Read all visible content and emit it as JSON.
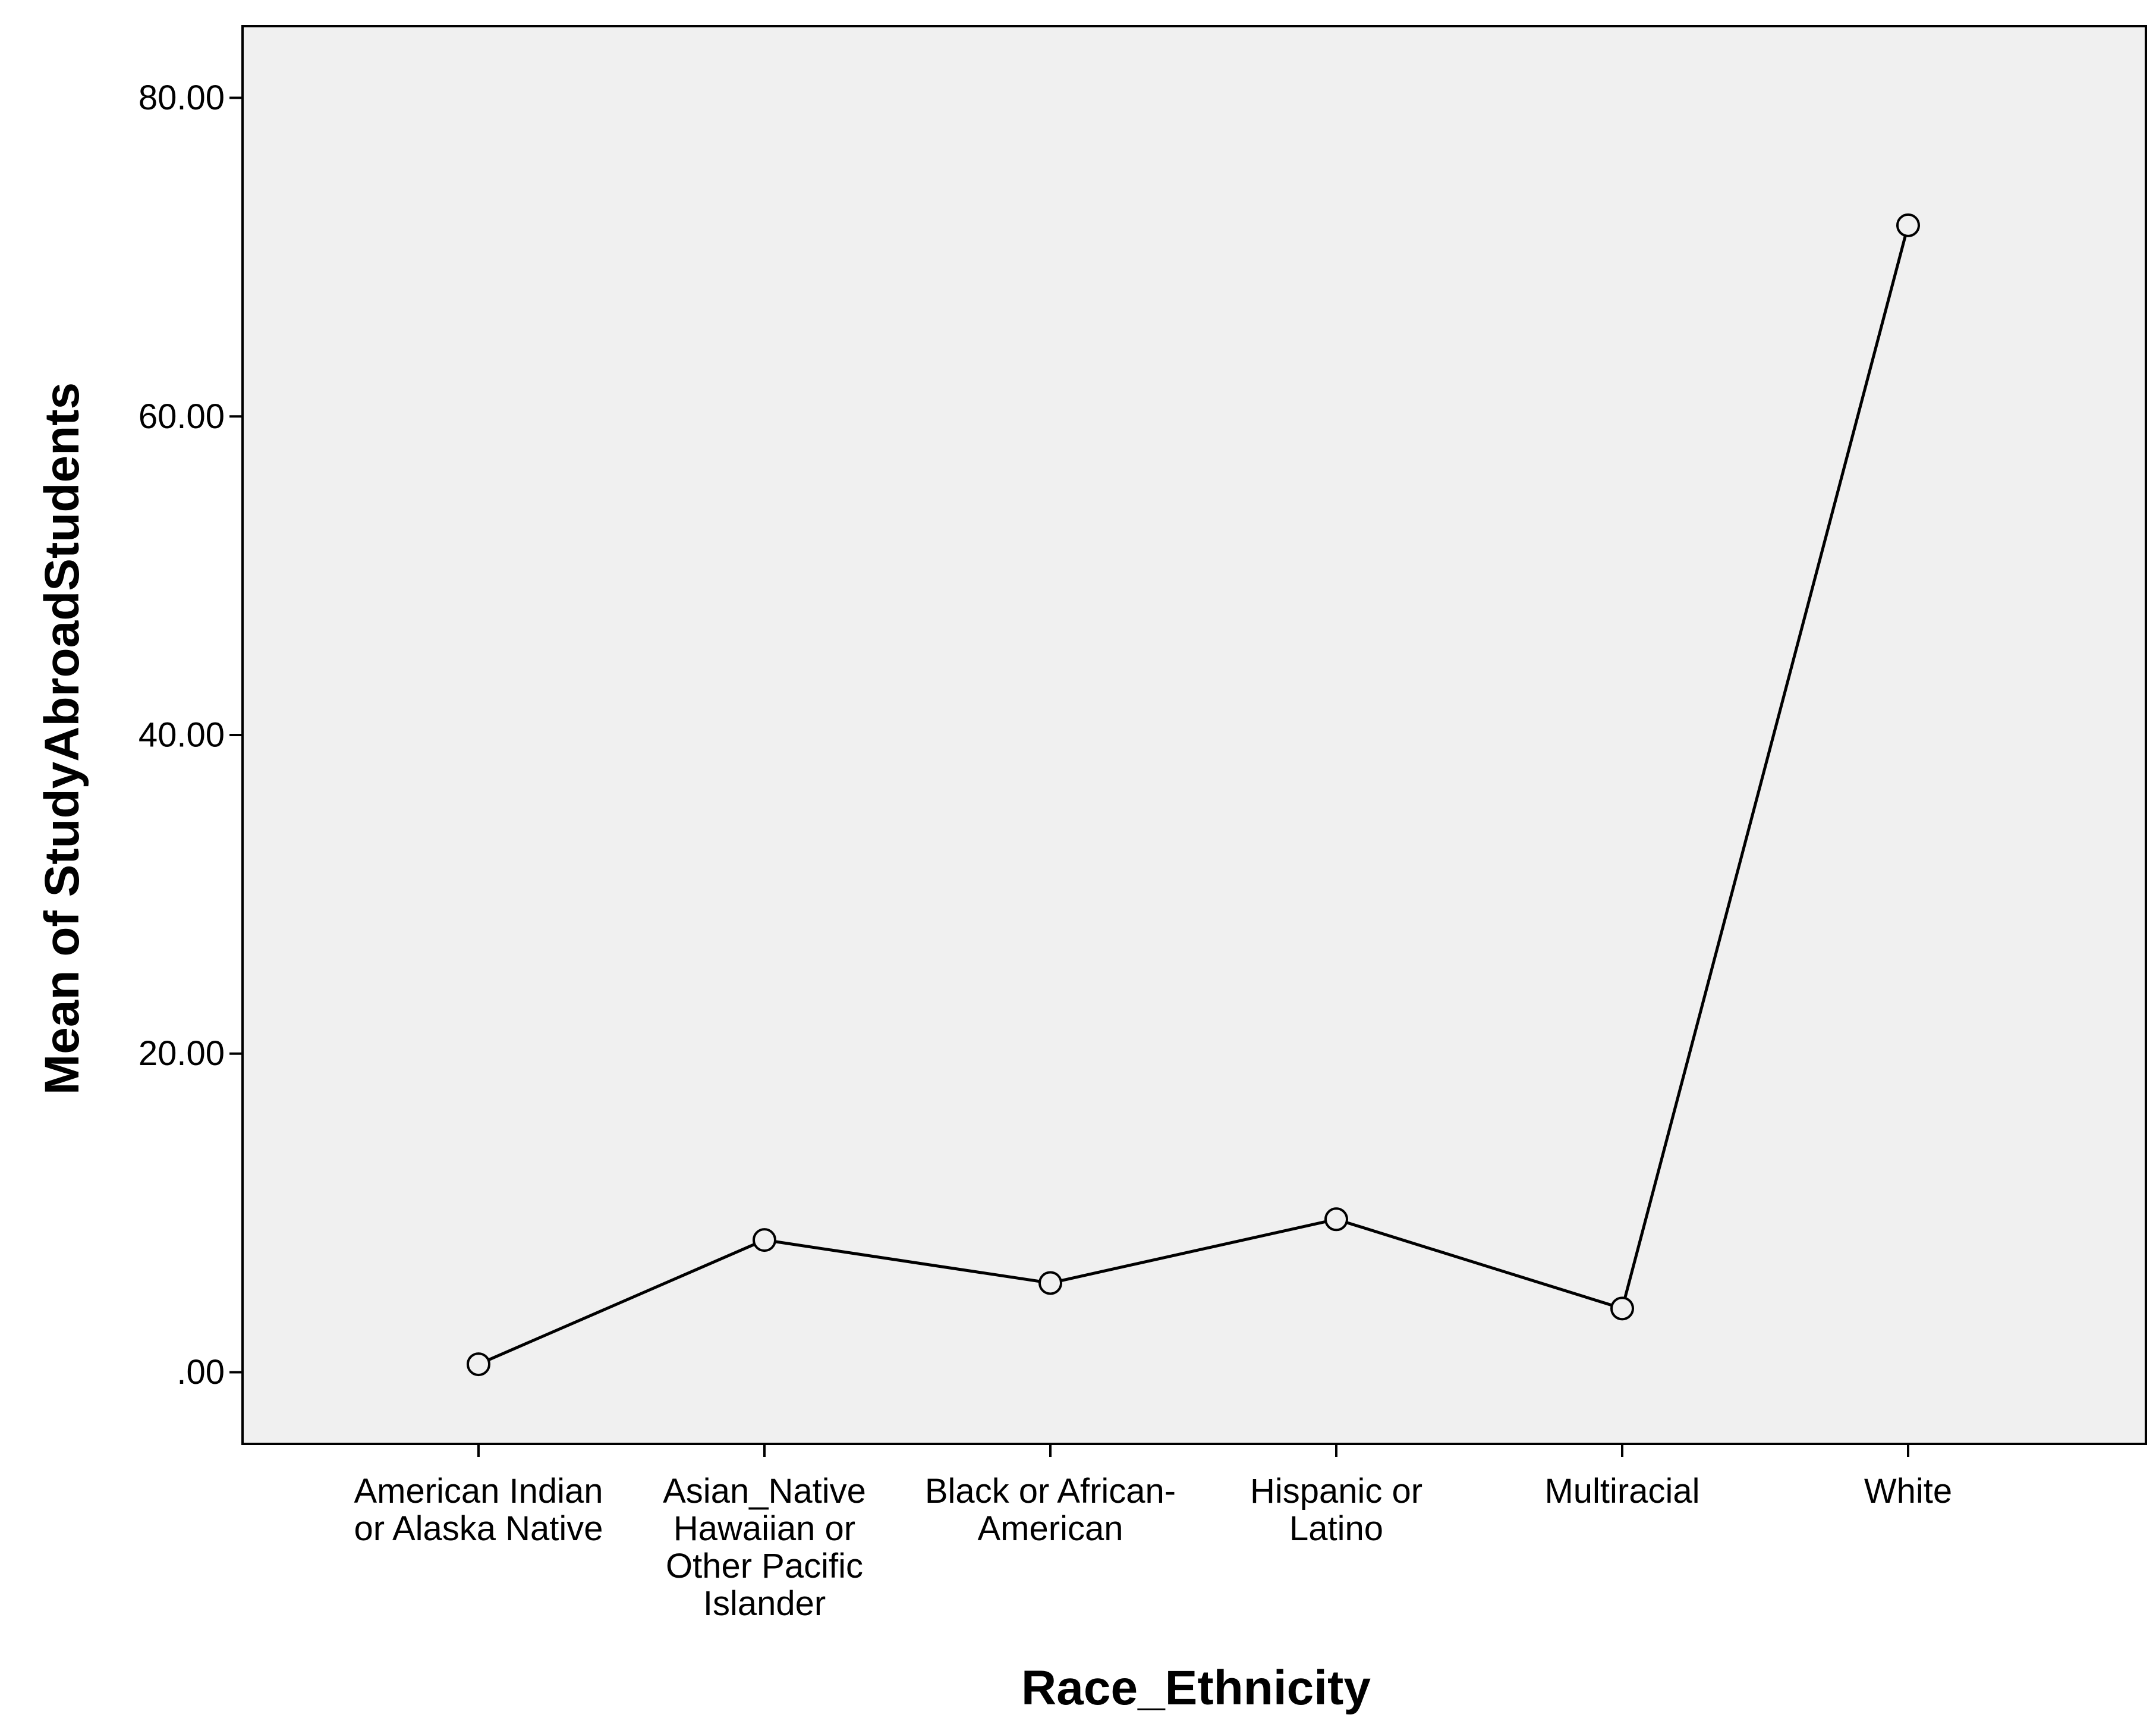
{
  "chart_data": {
    "type": "line",
    "xlabel": "Race_Ethnicity",
    "ylabel": "Mean of StudyAbroadStudents",
    "categories": [
      [
        "American Indian",
        "or Alaska Native"
      ],
      [
        "Asian_Native",
        "Hawaiian or",
        "Other Pacific",
        "Islander"
      ],
      [
        "Black or African-",
        "American"
      ],
      [
        "Hispanic or",
        "Latino"
      ],
      [
        "Multiracial"
      ],
      [
        "White"
      ]
    ],
    "values": [
      0.5,
      8.3,
      5.6,
      9.6,
      4.0,
      72.0
    ],
    "ylim": [
      -4.5,
      84.5
    ],
    "yticks": [
      0,
      20,
      40,
      60,
      80
    ],
    "ytick_labels": [
      ".00",
      "20.00",
      "40.00",
      "60.00",
      "80.00"
    ],
    "grid": false,
    "colors": {
      "plot_background": "#f0f0f0",
      "line": "#000000",
      "marker_fill": "#f0f0f0"
    }
  }
}
